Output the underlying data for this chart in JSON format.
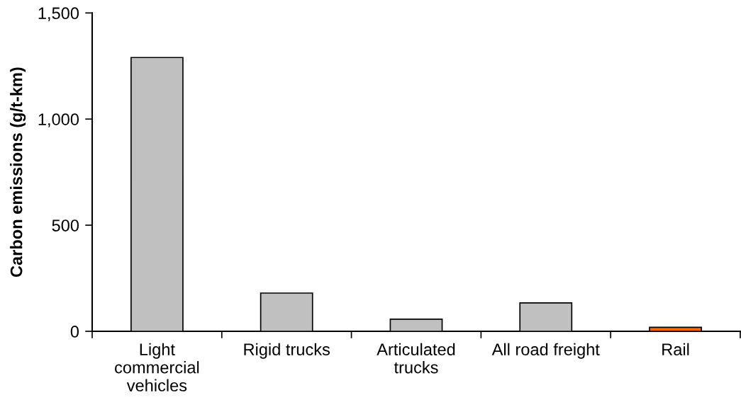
{
  "chart_data": {
    "type": "bar",
    "ylabel": "Carbon emissions (g/t-km)",
    "categories": [
      "Light\ncommercial\nvehicles",
      "Rigid trucks",
      "Articulated\ntrucks",
      "All road freight",
      "Rail"
    ],
    "values": [
      1290,
      180,
      57,
      134,
      19
    ],
    "colors": [
      "#c0c0c0",
      "#c0c0c0",
      "#c0c0c0",
      "#c0c0c0",
      "#ff6600"
    ],
    "ylim": [
      0,
      1500
    ],
    "yticks": [
      0,
      500,
      {
        "value": 1000,
        "label": "1,000"
      },
      {
        "value": 1500,
        "label": "1,500"
      }
    ],
    "grid": false
  }
}
